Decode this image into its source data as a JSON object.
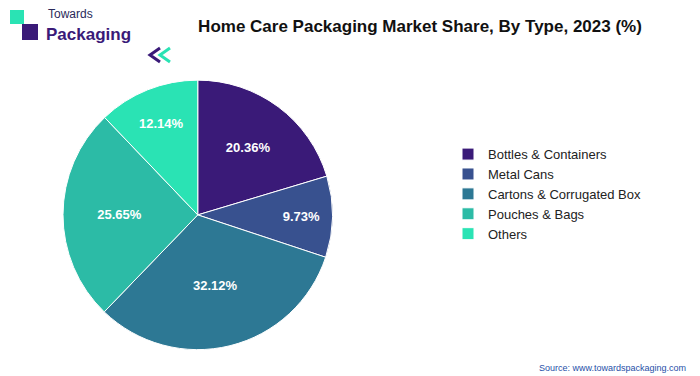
{
  "chart_data": {
    "type": "pie",
    "title": "Home Care Packaging Market Share, By Type, 2023 (%)",
    "categories": [
      "Bottles & Containers",
      "Metal Cans",
      "Cartons & Corrugated Box",
      "Pouches & Bags",
      "Others"
    ],
    "values": [
      20.36,
      9.73,
      32.12,
      25.65,
      12.14
    ],
    "value_labels": [
      "20.36%",
      "9.73%",
      "32.12%",
      "25.65%",
      "12.14%"
    ],
    "colors": [
      "#3a1a78",
      "#38518f",
      "#2d7894",
      "#2cbba6",
      "#2ae3b4"
    ],
    "data_labels": true,
    "legend": "right",
    "annotations": [
      "Towards",
      "Packaging",
      "Source: www.towardspackaging.com"
    ]
  }
}
